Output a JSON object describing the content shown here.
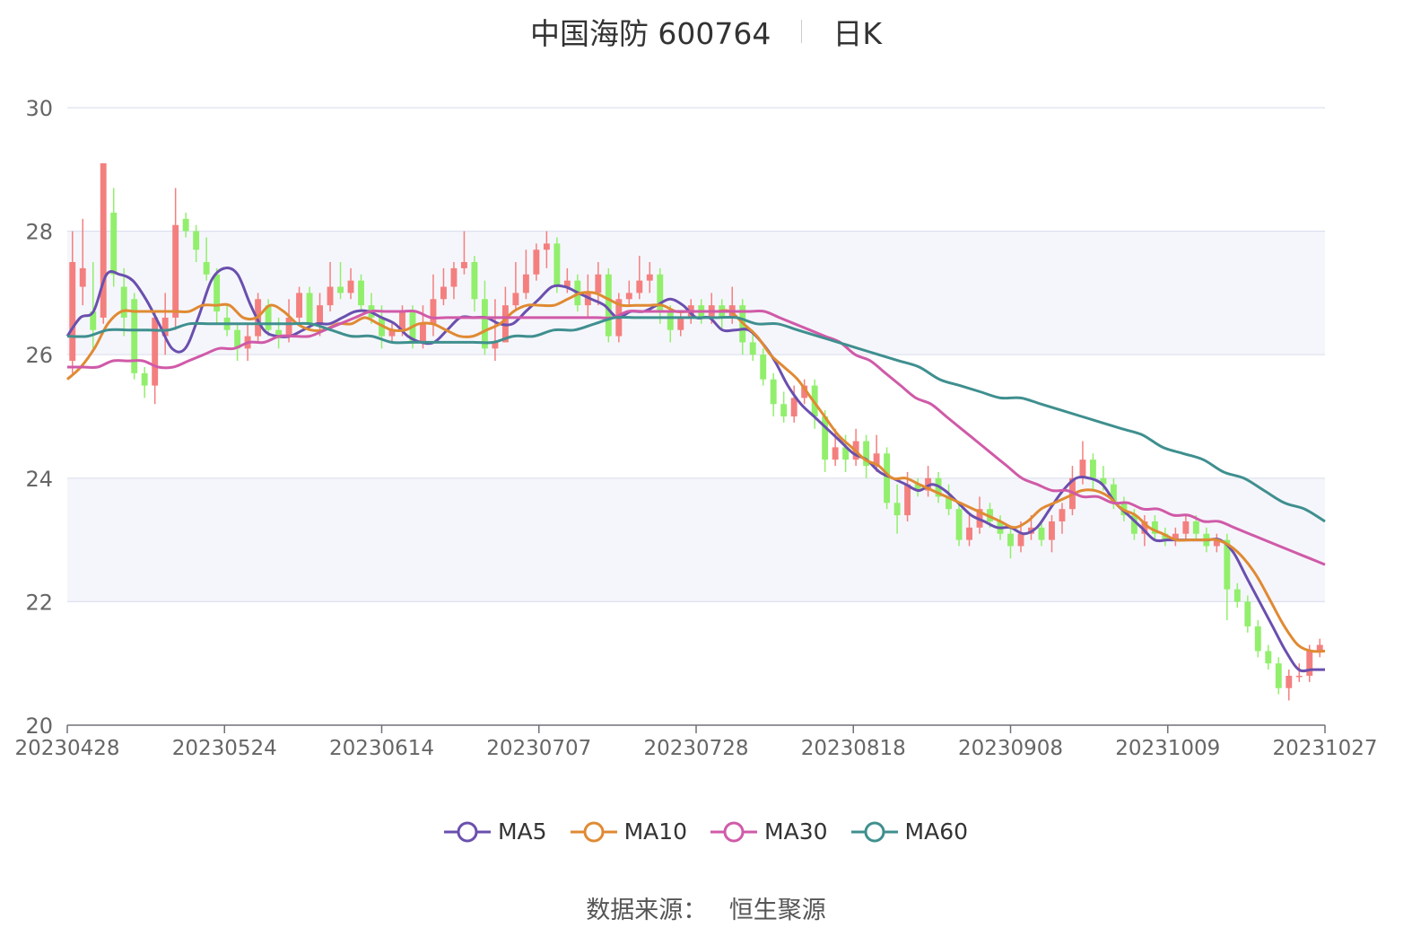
{
  "header": {
    "name": "中国海防 600764",
    "period": "日K"
  },
  "source": {
    "label": "数据来源：",
    "value": "恒生聚源"
  },
  "chart_data": {
    "type": "candlestick",
    "ylim": [
      20,
      30
    ],
    "yticks": [
      "20",
      "22",
      "24",
      "26",
      "28",
      "30"
    ],
    "xticks": [
      "20230428",
      "20230524",
      "20230614",
      "20230707",
      "20230728",
      "20230818",
      "20230908",
      "20231009",
      "20231027"
    ],
    "grid": true,
    "bands": true,
    "legend_position": "bottom-center",
    "colors": {
      "up": "#f47f7f",
      "down": "#91ef6c"
    },
    "series": [
      {
        "name": "MA5",
        "color": "#6a4fae",
        "values": [
          26.3,
          26.6,
          26.7,
          27.3,
          27.3,
          27.2,
          26.9,
          26.5,
          26.1,
          26.1,
          26.6,
          27.2,
          27.4,
          27.3,
          26.8,
          26.4,
          26.3,
          26.3,
          26.4,
          26.5,
          26.5,
          26.6,
          26.7,
          26.7,
          26.6,
          26.5,
          26.3,
          26.2,
          26.2,
          26.4,
          26.6,
          26.6,
          26.6,
          26.5,
          26.5,
          26.7,
          26.9,
          27.1,
          27.1,
          27.0,
          26.9,
          26.8,
          26.6,
          26.7,
          26.7,
          26.8,
          26.9,
          26.8,
          26.6,
          26.6,
          26.4,
          26.4,
          26.4,
          26.2,
          25.9,
          25.5,
          25.2,
          25.0,
          24.8,
          24.6,
          24.4,
          24.3,
          24.1,
          24.0,
          23.9,
          23.8,
          23.9,
          23.8,
          23.6,
          23.4,
          23.3,
          23.2,
          23.2,
          23.1,
          23.2,
          23.5,
          23.8,
          24.0,
          24.0,
          23.9,
          23.6,
          23.4,
          23.2,
          23.0,
          23.0,
          23.0,
          23.0,
          23.0,
          23.0,
          22.8,
          22.4,
          22.0,
          21.6,
          21.2,
          20.9,
          20.9,
          20.9
        ]
      },
      {
        "name": "MA10",
        "color": "#e08a33",
        "values": [
          25.6,
          25.8,
          26.1,
          26.5,
          26.7,
          26.7,
          26.7,
          26.7,
          26.7,
          26.7,
          26.8,
          26.8,
          26.8,
          26.6,
          26.6,
          26.8,
          26.7,
          26.5,
          26.4,
          26.4,
          26.5,
          26.5,
          26.6,
          26.5,
          26.4,
          26.4,
          26.5,
          26.5,
          26.4,
          26.3,
          26.3,
          26.4,
          26.5,
          26.7,
          26.8,
          26.8,
          26.8,
          26.9,
          27.0,
          27.0,
          26.9,
          26.8,
          26.8,
          26.8,
          26.8,
          26.7,
          26.7,
          26.7,
          26.7,
          26.7,
          26.5,
          26.3,
          26.0,
          25.8,
          25.6,
          25.3,
          25.0,
          24.7,
          24.5,
          24.3,
          24.2,
          24.0,
          24.0,
          23.9,
          23.8,
          23.7,
          23.6,
          23.5,
          23.4,
          23.3,
          23.2,
          23.3,
          23.5,
          23.6,
          23.7,
          23.8,
          23.8,
          23.7,
          23.5,
          23.4,
          23.2,
          23.1,
          23.0,
          23.0,
          23.0,
          23.0,
          22.9,
          22.7,
          22.4,
          22.0,
          21.6,
          21.3,
          21.2,
          21.2
        ]
      },
      {
        "name": "MA30",
        "color": "#d05aa8",
        "values": [
          25.8,
          25.8,
          25.8,
          25.9,
          25.9,
          25.9,
          25.8,
          25.8,
          25.9,
          26.0,
          26.1,
          26.1,
          26.2,
          26.2,
          26.3,
          26.3,
          26.3,
          26.4,
          26.5,
          26.6,
          26.7,
          26.7,
          26.7,
          26.7,
          26.6,
          26.6,
          26.6,
          26.6,
          26.6,
          26.6,
          26.6,
          26.6,
          26.6,
          26.6,
          26.6,
          26.6,
          26.6,
          26.7,
          26.7,
          26.7,
          26.7,
          26.7,
          26.7,
          26.7,
          26.7,
          26.7,
          26.7,
          26.6,
          26.5,
          26.4,
          26.3,
          26.2,
          26.0,
          25.9,
          25.7,
          25.5,
          25.3,
          25.2,
          25.0,
          24.8,
          24.6,
          24.4,
          24.2,
          24.0,
          23.9,
          23.8,
          23.8,
          23.7,
          23.7,
          23.6,
          23.6,
          23.5,
          23.5,
          23.4,
          23.4,
          23.3,
          23.3,
          23.2,
          23.1,
          23.0,
          22.9,
          22.8,
          22.7,
          22.6
        ]
      },
      {
        "name": "MA60",
        "color": "#3f8f8f",
        "values": [
          26.3,
          26.3,
          26.4,
          26.4,
          26.4,
          26.4,
          26.5,
          26.5,
          26.5,
          26.5,
          26.5,
          26.5,
          26.5,
          26.4,
          26.3,
          26.3,
          26.2,
          26.2,
          26.2,
          26.2,
          26.2,
          26.2,
          26.3,
          26.3,
          26.4,
          26.4,
          26.5,
          26.6,
          26.6,
          26.6,
          26.6,
          26.6,
          26.6,
          26.6,
          26.5,
          26.5,
          26.4,
          26.3,
          26.2,
          26.1,
          26.0,
          25.9,
          25.8,
          25.6,
          25.5,
          25.4,
          25.3,
          25.3,
          25.2,
          25.1,
          25.0,
          24.9,
          24.8,
          24.7,
          24.5,
          24.4,
          24.3,
          24.1,
          24.0,
          23.8,
          23.6,
          23.5,
          23.3
        ]
      }
    ],
    "candles": [
      [
        25.9,
        27.5,
        28.0,
        25.7
      ],
      [
        27.1,
        27.4,
        28.2,
        26.8
      ],
      [
        26.7,
        26.4,
        27.5,
        26.1
      ],
      [
        26.6,
        29.1,
        29.1,
        26.5
      ],
      [
        28.3,
        27.3,
        28.7,
        27.1
      ],
      [
        27.1,
        26.6,
        27.4,
        26.3
      ],
      [
        26.9,
        25.7,
        27.0,
        25.6
      ],
      [
        25.7,
        25.5,
        25.8,
        25.3
      ],
      [
        25.5,
        26.6,
        26.7,
        25.2
      ],
      [
        26.3,
        26.6,
        27.0,
        26.0
      ],
      [
        26.6,
        28.1,
        28.7,
        26.4
      ],
      [
        28.2,
        28.0,
        28.3,
        27.9
      ],
      [
        28.0,
        27.7,
        28.1,
        27.5
      ],
      [
        27.5,
        27.3,
        27.9,
        27.2
      ],
      [
        27.3,
        26.7,
        27.4,
        26.5
      ],
      [
        26.6,
        26.4,
        26.8,
        26.3
      ],
      [
        26.4,
        26.1,
        26.5,
        25.9
      ],
      [
        26.1,
        26.3,
        26.5,
        25.9
      ],
      [
        26.3,
        26.9,
        27.0,
        26.2
      ],
      [
        26.8,
        26.4,
        26.9,
        26.3
      ],
      [
        26.4,
        26.3,
        26.6,
        26.1
      ],
      [
        26.3,
        26.6,
        26.9,
        26.2
      ],
      [
        26.6,
        27.0,
        27.1,
        26.5
      ],
      [
        27.0,
        26.5,
        27.1,
        26.4
      ],
      [
        26.5,
        26.8,
        27.0,
        26.3
      ],
      [
        26.8,
        27.1,
        27.5,
        26.7
      ],
      [
        27.1,
        27.0,
        27.5,
        26.9
      ],
      [
        27.0,
        27.2,
        27.4,
        26.9
      ],
      [
        27.2,
        26.8,
        27.3,
        26.7
      ],
      [
        26.8,
        26.6,
        27.0,
        26.5
      ],
      [
        26.6,
        26.3,
        26.8,
        26.1
      ],
      [
        26.3,
        26.4,
        26.5,
        26.2
      ],
      [
        26.4,
        26.7,
        26.8,
        26.3
      ],
      [
        26.7,
        26.2,
        26.8,
        26.1
      ],
      [
        26.2,
        26.5,
        26.8,
        26.1
      ],
      [
        26.5,
        26.9,
        27.3,
        26.3
      ],
      [
        26.9,
        27.1,
        27.4,
        26.8
      ],
      [
        27.1,
        27.4,
        27.5,
        26.9
      ],
      [
        27.4,
        27.5,
        28.0,
        27.3
      ],
      [
        27.5,
        26.9,
        27.6,
        26.7
      ],
      [
        26.9,
        26.1,
        27.2,
        26.0
      ],
      [
        26.1,
        26.2,
        26.9,
        25.9
      ],
      [
        26.2,
        26.8,
        27.1,
        26.2
      ],
      [
        26.8,
        27.0,
        27.5,
        26.7
      ],
      [
        27.0,
        27.3,
        27.7,
        26.9
      ],
      [
        27.3,
        27.7,
        27.8,
        27.2
      ],
      [
        27.7,
        27.8,
        28.0,
        27.4
      ],
      [
        27.8,
        27.1,
        27.9,
        27.0
      ],
      [
        27.1,
        27.2,
        27.4,
        27.0
      ],
      [
        27.2,
        26.8,
        27.3,
        26.7
      ],
      [
        26.8,
        27.0,
        27.3,
        26.6
      ],
      [
        27.0,
        27.3,
        27.5,
        26.8
      ],
      [
        27.3,
        26.3,
        27.4,
        26.2
      ],
      [
        26.3,
        26.9,
        27.0,
        26.2
      ],
      [
        26.9,
        27.0,
        27.2,
        26.8
      ],
      [
        27.0,
        27.2,
        27.6,
        26.9
      ],
      [
        27.2,
        27.3,
        27.5,
        27.0
      ],
      [
        27.3,
        26.7,
        27.4,
        26.5
      ],
      [
        26.7,
        26.4,
        26.8,
        26.2
      ],
      [
        26.4,
        26.6,
        26.7,
        26.3
      ],
      [
        26.6,
        26.8,
        26.9,
        26.5
      ],
      [
        26.8,
        26.6,
        26.9,
        26.5
      ],
      [
        26.6,
        26.8,
        27.0,
        26.5
      ],
      [
        26.8,
        26.6,
        26.9,
        26.4
      ],
      [
        26.6,
        26.8,
        27.1,
        26.5
      ],
      [
        26.8,
        26.2,
        26.9,
        26.0
      ],
      [
        26.2,
        26.0,
        26.4,
        25.9
      ],
      [
        26.0,
        25.6,
        26.1,
        25.5
      ],
      [
        25.6,
        25.2,
        25.7,
        25.0
      ],
      [
        25.2,
        25.0,
        25.4,
        24.9
      ],
      [
        25.0,
        25.3,
        25.5,
        24.9
      ],
      [
        25.3,
        25.5,
        25.6,
        25.2
      ],
      [
        25.5,
        25.0,
        25.6,
        24.8
      ],
      [
        25.0,
        24.3,
        25.1,
        24.1
      ],
      [
        24.3,
        24.5,
        24.8,
        24.2
      ],
      [
        24.5,
        24.3,
        24.7,
        24.1
      ],
      [
        24.3,
        24.6,
        24.8,
        24.2
      ],
      [
        24.6,
        24.2,
        24.7,
        24.0
      ],
      [
        24.2,
        24.4,
        24.7,
        24.1
      ],
      [
        24.4,
        23.6,
        24.5,
        23.5
      ],
      [
        23.6,
        23.4,
        23.9,
        23.1
      ],
      [
        23.4,
        23.9,
        24.1,
        23.3
      ],
      [
        23.9,
        23.8,
        24.0,
        23.7
      ],
      [
        23.8,
        24.0,
        24.2,
        23.7
      ],
      [
        24.0,
        23.7,
        24.1,
        23.6
      ],
      [
        23.7,
        23.5,
        23.9,
        23.4
      ],
      [
        23.5,
        23.0,
        23.6,
        22.9
      ],
      [
        23.0,
        23.2,
        23.4,
        22.9
      ],
      [
        23.2,
        23.5,
        23.7,
        23.1
      ],
      [
        23.5,
        23.3,
        23.6,
        23.2
      ],
      [
        23.3,
        23.1,
        23.4,
        23.0
      ],
      [
        23.1,
        22.9,
        23.2,
        22.7
      ],
      [
        22.9,
        23.1,
        23.3,
        22.8
      ],
      [
        23.1,
        23.2,
        23.4,
        23.0
      ],
      [
        23.2,
        23.0,
        23.3,
        22.9
      ],
      [
        23.0,
        23.3,
        23.4,
        22.8
      ],
      [
        23.3,
        23.5,
        23.6,
        23.1
      ],
      [
        23.5,
        24.0,
        24.2,
        23.4
      ],
      [
        24.0,
        24.3,
        24.6,
        23.9
      ],
      [
        24.3,
        24.0,
        24.4,
        23.8
      ],
      [
        24.0,
        23.9,
        24.2,
        23.8
      ],
      [
        23.9,
        23.6,
        24.0,
        23.5
      ],
      [
        23.6,
        23.4,
        23.7,
        23.3
      ],
      [
        23.4,
        23.1,
        23.5,
        23.0
      ],
      [
        23.1,
        23.3,
        23.4,
        22.9
      ],
      [
        23.3,
        23.1,
        23.4,
        23.0
      ],
      [
        23.1,
        23.0,
        23.2,
        22.9
      ],
      [
        23.0,
        23.1,
        23.2,
        22.9
      ],
      [
        23.1,
        23.3,
        23.4,
        23.0
      ],
      [
        23.3,
        23.1,
        23.4,
        23.0
      ],
      [
        23.1,
        22.9,
        23.2,
        22.8
      ],
      [
        22.9,
        23.0,
        23.1,
        22.8
      ],
      [
        23.0,
        22.2,
        23.1,
        21.7
      ],
      [
        22.2,
        22.0,
        22.3,
        21.9
      ],
      [
        22.0,
        21.6,
        22.1,
        21.5
      ],
      [
        21.6,
        21.2,
        21.7,
        21.1
      ],
      [
        21.2,
        21.0,
        21.3,
        20.9
      ],
      [
        21.0,
        20.6,
        21.1,
        20.5
      ],
      [
        20.6,
        20.8,
        20.9,
        20.4
      ],
      [
        20.8,
        20.8,
        21.0,
        20.7
      ],
      [
        20.8,
        21.2,
        21.3,
        20.7
      ],
      [
        21.2,
        21.3,
        21.4,
        21.1
      ]
    ]
  }
}
